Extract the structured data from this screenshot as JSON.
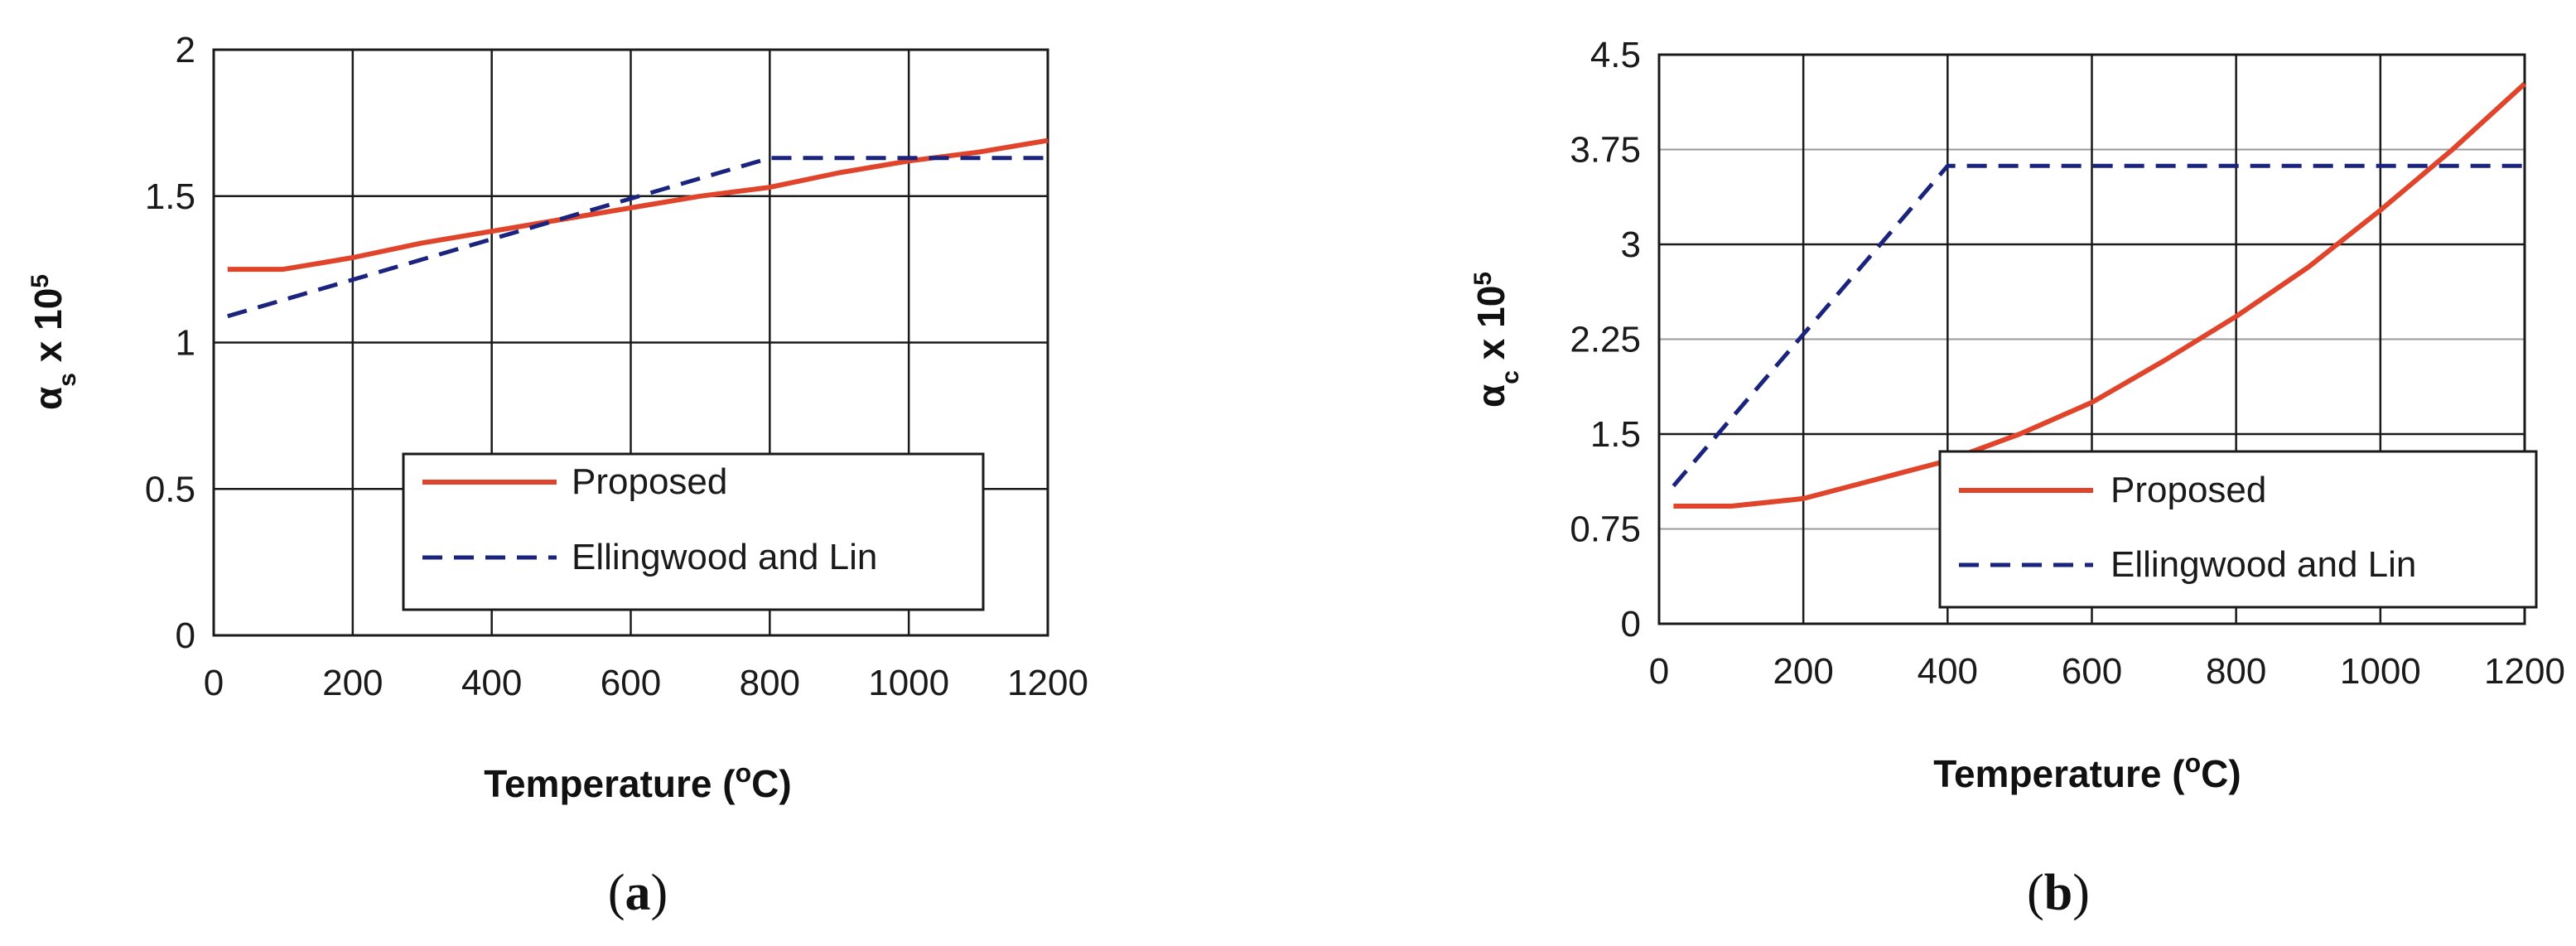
{
  "colors": {
    "proposed": "#e0442a",
    "ellingwood": "#1a237e",
    "grid": "#1a1a1a",
    "minor_grid": "#999999"
  },
  "chart_data": [
    {
      "type": "line",
      "caption": "a",
      "xlabel": "Temperature (",
      "xlabel_sup": "o",
      "xlabel_tail": "C)",
      "ylabel_main": "α",
      "ylabel_sub": "s",
      "ylabel_tail": " x 10",
      "ylabel_sup": "5",
      "xlim": [
        0,
        1200
      ],
      "ylim": [
        0,
        2
      ],
      "xticks": [
        0,
        200,
        400,
        600,
        800,
        1000,
        1200
      ],
      "xtick_labels": [
        "0",
        "200",
        "400",
        "600",
        "800",
        "1000",
        "1200"
      ],
      "yticks": [
        0,
        0.5,
        1,
        1.5,
        2
      ],
      "ytick_labels": [
        "0",
        "0.5",
        "1",
        "1.5",
        "2"
      ],
      "x_grid": [
        0,
        200,
        400,
        600,
        800,
        1000,
        1200
      ],
      "y_grid": [
        0,
        0.5,
        1,
        1.5,
        2
      ],
      "minor_y_grid": [],
      "legend_placement": "lower-right",
      "series": [
        {
          "name": "Proposed",
          "style": "solid",
          "x": [
            20,
            100,
            200,
            300,
            400,
            500,
            600,
            700,
            800,
            900,
            1000,
            1100,
            1200
          ],
          "y": [
            1.25,
            1.25,
            1.29,
            1.34,
            1.38,
            1.42,
            1.46,
            1.5,
            1.53,
            1.58,
            1.62,
            1.65,
            1.69
          ]
        },
        {
          "name": "Ellingwood and Lin",
          "style": "dashed",
          "x": [
            20,
            800,
            1200
          ],
          "y": [
            1.09,
            1.63,
            1.63
          ]
        }
      ]
    },
    {
      "type": "line",
      "caption": "b",
      "xlabel": "Temperature (",
      "xlabel_sup": "o",
      "xlabel_tail": "C)",
      "ylabel_main": "α",
      "ylabel_sub": "c",
      "ylabel_tail": " x 10",
      "ylabel_sup": "5",
      "xlim": [
        0,
        1200
      ],
      "ylim": [
        0,
        4.5
      ],
      "xticks": [
        0,
        200,
        400,
        600,
        800,
        1000,
        1200
      ],
      "xtick_labels": [
        "0",
        "200",
        "400",
        "600",
        "800",
        "1000",
        "1200"
      ],
      "yticks": [
        0,
        0.75,
        1.5,
        2.25,
        3,
        3.75,
        4.5
      ],
      "ytick_labels": [
        "0",
        "0.75",
        "1.5",
        "2.25",
        "3",
        "3.75",
        "4.5"
      ],
      "x_grid": [
        0,
        200,
        400,
        600,
        800,
        1000,
        1200
      ],
      "y_grid": [
        0,
        1.5,
        3,
        4.5
      ],
      "minor_y_grid": [
        0.75,
        2.25,
        3.75
      ],
      "legend_placement": "lower-right",
      "series": [
        {
          "name": "Proposed",
          "style": "solid",
          "x": [
            20,
            100,
            200,
            300,
            400,
            500,
            600,
            700,
            800,
            900,
            1000,
            1100,
            1200
          ],
          "y": [
            0.93,
            0.93,
            0.99,
            1.14,
            1.29,
            1.5,
            1.75,
            2.08,
            2.43,
            2.82,
            3.27,
            3.75,
            4.27
          ]
        },
        {
          "name": "Ellingwood and Lin",
          "style": "dashed",
          "x": [
            20,
            400,
            1200
          ],
          "y": [
            1.09,
            3.62,
            3.62
          ]
        }
      ]
    }
  ]
}
